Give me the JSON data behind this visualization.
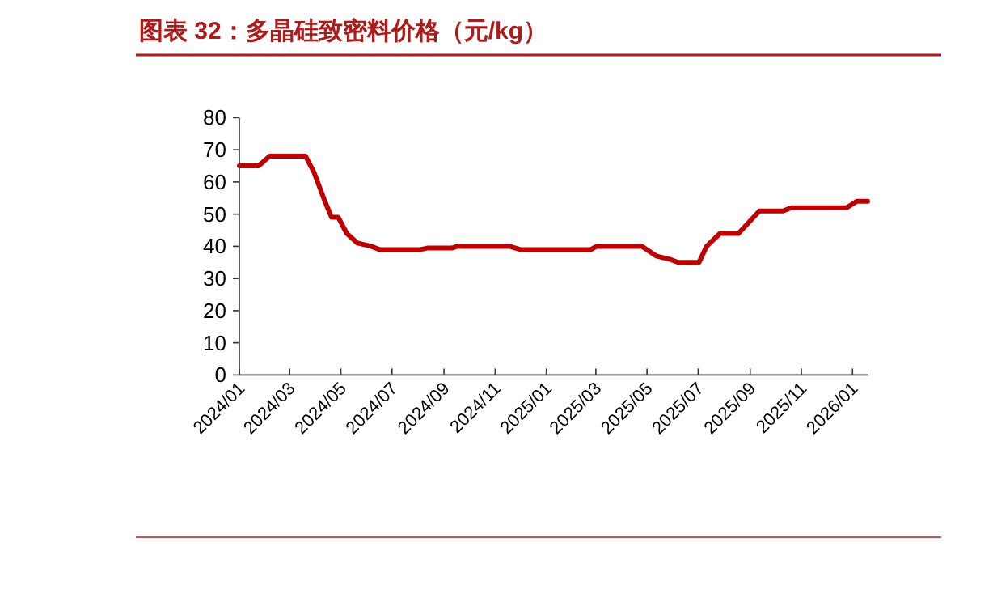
{
  "chart_data": {
    "type": "line",
    "title": "图表 32：多晶硅致密料价格（元/kg）",
    "x": [
      "2024-01-01",
      "2024-01-24",
      "2024-02-06",
      "2024-03-20",
      "2024-03-30",
      "2024-04-12",
      "2024-04-20",
      "2024-04-28",
      "2024-05-08",
      "2024-05-21",
      "2024-06-06",
      "2024-06-16",
      "2024-08-04",
      "2024-08-13",
      "2024-09-11",
      "2024-09-17",
      "2024-11-18",
      "2024-12-01",
      "2025-02-23",
      "2025-03-02",
      "2025-04-25",
      "2025-05-12",
      "2025-05-28",
      "2025-06-07",
      "2025-07-02",
      "2025-07-11",
      "2025-07-27",
      "2025-08-18",
      "2025-09-12",
      "2025-10-10",
      "2025-10-20",
      "2025-12-25",
      "2026-01-06",
      "2026-01-19"
    ],
    "series": [
      {
        "color": "#c00000",
        "values": [
          65,
          65,
          68,
          68,
          63,
          54,
          49,
          49,
          44,
          41,
          40,
          39,
          39,
          39.5,
          39.5,
          40,
          40,
          39,
          39,
          40,
          40,
          37,
          36,
          35,
          35,
          40,
          44,
          44,
          51,
          51,
          52,
          52,
          54,
          54
        ]
      }
    ],
    "xlim": [
      "2024-01-01",
      "2026-01-20"
    ],
    "xticks": [
      {
        "value": "2024-01-01",
        "label": "2024/01"
      },
      {
        "value": "2024-03-01",
        "label": "2024/03"
      },
      {
        "value": "2024-05-01",
        "label": "2024/05"
      },
      {
        "value": "2024-07-01",
        "label": "2024/07"
      },
      {
        "value": "2024-09-01",
        "label": "2024/09"
      },
      {
        "value": "2024-11-01",
        "label": "2024/11"
      },
      {
        "value": "2025-01-01",
        "label": "2025/01"
      },
      {
        "value": "2025-03-01",
        "label": "2025/03"
      },
      {
        "value": "2025-05-01",
        "label": "2025/05"
      },
      {
        "value": "2025-07-01",
        "label": "2025/07"
      },
      {
        "value": "2025-09-01",
        "label": "2025/09"
      },
      {
        "value": "2025-11-01",
        "label": "2025/11"
      },
      {
        "value": "2026-01-01",
        "label": "2026/01"
      }
    ],
    "ylim": [
      0,
      80
    ],
    "yticks": [
      0,
      10,
      20,
      30,
      40,
      50,
      60,
      70,
      80
    ],
    "grid": false
  }
}
